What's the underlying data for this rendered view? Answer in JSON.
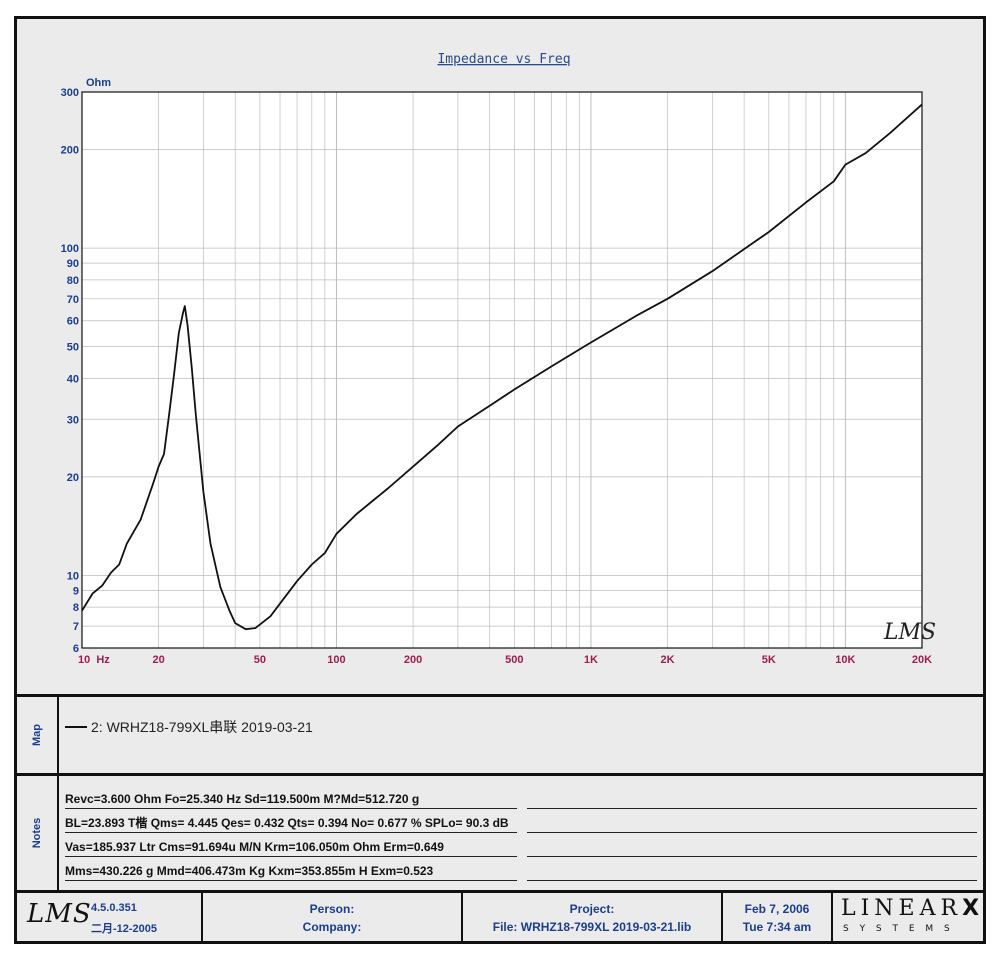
{
  "chart_data": {
    "type": "line",
    "title": "Impedance vs Freq",
    "ylabel": "Ohm",
    "xlabel": "",
    "x_scale": "log",
    "y_scale": "log",
    "xlim": [
      10,
      20000
    ],
    "ylim": [
      6,
      300
    ],
    "x_tick_labels": [
      {
        "value": 10,
        "label": "10  Hz"
      },
      {
        "value": 20,
        "label": "20"
      },
      {
        "value": 50,
        "label": "50"
      },
      {
        "value": 100,
        "label": "100"
      },
      {
        "value": 200,
        "label": "200"
      },
      {
        "value": 500,
        "label": "500"
      },
      {
        "value": 1000,
        "label": "1K"
      },
      {
        "value": 2000,
        "label": "2K"
      },
      {
        "value": 5000,
        "label": "5K"
      },
      {
        "value": 10000,
        "label": "10K"
      },
      {
        "value": 20000,
        "label": "20K"
      }
    ],
    "y_tick_labels": [
      {
        "value": 300,
        "label": "300"
      },
      {
        "value": 200,
        "label": "200"
      },
      {
        "value": 100,
        "label": "100"
      },
      {
        "value": 90,
        "label": "90"
      },
      {
        "value": 80,
        "label": "80"
      },
      {
        "value": 70,
        "label": "70"
      },
      {
        "value": 60,
        "label": "60"
      },
      {
        "value": 50,
        "label": "50"
      },
      {
        "value": 40,
        "label": "40"
      },
      {
        "value": 30,
        "label": "30"
      },
      {
        "value": 20,
        "label": "20"
      },
      {
        "value": 10,
        "label": "10"
      },
      {
        "value": 9,
        "label": "9"
      },
      {
        "value": 8,
        "label": "8"
      },
      {
        "value": 7,
        "label": "7"
      },
      {
        "value": 6,
        "label": "6"
      }
    ],
    "grid": true,
    "series": [
      {
        "name": "2: WRHZ18-799XL串联 2019-03-21",
        "color": "#111111",
        "points": [
          [
            10,
            7.8
          ],
          [
            11,
            8.8
          ],
          [
            12,
            9.3
          ],
          [
            13,
            10.2
          ],
          [
            14,
            10.8
          ],
          [
            15,
            12.5
          ],
          [
            17,
            14.8
          ],
          [
            19,
            19.0
          ],
          [
            20,
            21.5
          ],
          [
            21,
            23.5
          ],
          [
            22,
            31.0
          ],
          [
            23,
            41.0
          ],
          [
            24,
            55.0
          ],
          [
            25,
            64.0
          ],
          [
            25.34,
            66.5
          ],
          [
            26,
            58.0
          ],
          [
            27,
            43.0
          ],
          [
            28,
            31.0
          ],
          [
            30,
            18.0
          ],
          [
            32,
            12.5
          ],
          [
            35,
            9.2
          ],
          [
            38,
            7.8
          ],
          [
            40,
            7.15
          ],
          [
            44,
            6.85
          ],
          [
            48,
            6.9
          ],
          [
            55,
            7.5
          ],
          [
            60,
            8.2
          ],
          [
            70,
            9.6
          ],
          [
            80,
            10.8
          ],
          [
            90,
            11.7
          ],
          [
            100,
            13.4
          ],
          [
            120,
            15.4
          ],
          [
            140,
            17.0
          ],
          [
            160,
            18.5
          ],
          [
            200,
            21.5
          ],
          [
            250,
            25.0
          ],
          [
            300,
            28.5
          ],
          [
            400,
            33.0
          ],
          [
            500,
            37.0
          ],
          [
            700,
            43.5
          ],
          [
            900,
            49.0
          ],
          [
            1000,
            51.5
          ],
          [
            1500,
            62.0
          ],
          [
            2000,
            70.0
          ],
          [
            3000,
            85.0
          ],
          [
            5000,
            112.0
          ],
          [
            7000,
            138.0
          ],
          [
            9000,
            160.0
          ],
          [
            10000,
            180.0
          ],
          [
            12000,
            195.0
          ],
          [
            15000,
            225.0
          ],
          [
            20000,
            275.0
          ]
        ]
      }
    ]
  },
  "map": {
    "label": "Map",
    "entry": "2: WRHZ18-799XL串联 2019-03-21"
  },
  "notes": {
    "label": "Notes",
    "lines": [
      "Revc=3.600 Ohm  Fo=25.340 Hz  Sd=119.500m M?Md=512.720 g",
      "BL=23.893 T楷  Qms= 4.445  Qes= 0.432  Qts= 0.394  No= 0.677 %  SPLo= 90.3 dB",
      "Vas=185.937 Ltr  Cms=91.694u M/N  Krm=106.050m Ohm  Erm=0.649",
      "Mms=430.226 g  Mmd=406.473m Kg  Kxm=353.855m H  Exm=0.523"
    ]
  },
  "footer": {
    "version": "4.5.0.351",
    "build_date": "二月-12-2005",
    "person_label": "Person:",
    "company_label": "Company:",
    "project_label": "Project:",
    "file_label": "File: WRHZ18-799XL 2019-03-21.lib",
    "date": "Feb  7, 2006",
    "time": "Tue  7:34 am",
    "logo_lms": "LMS",
    "logo_brand": "LINEAR",
    "logo_brand_x": "X",
    "logo_sub": "S Y S T E M S"
  },
  "watermark": "LMS",
  "colors": {
    "title": "#2a4a8a",
    "axis_labels": "#a01d4d",
    "y_labels": "#1a3d8f",
    "background": "#ebebeb",
    "grid": "#bdbdbd"
  }
}
